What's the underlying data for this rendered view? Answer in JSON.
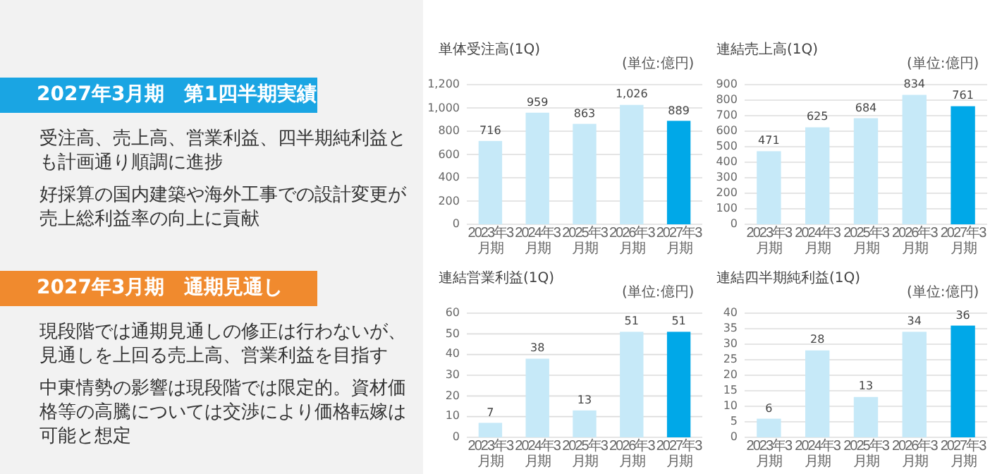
{
  "chart_data": [
    {
      "type": "other",
      "annotations": [
        "2027年3月期　第1四半期実績",
        "受注高、売上高、営業利益、四半期純利益とも計画通り順調に進捗",
        "好採算の国内建築や海外工事での設計変更が売上総利益率の向上に貢献",
        "2027年3月期　通期見通し",
        "現段階では通期見通しの修正は行わないが、見通しを上回る売上高、営業利益を目指す",
        "中東情勢の影響は現段階では限定的。資材価格等の高騰については交渉により価格転嫁は可能と想定"
      ]
    },
    {
      "type": "bar",
      "title": "単体受注高(1Q)",
      "annotations": [
        "(単位:億円)"
      ],
      "categories": [
        "2023年3月期",
        "2024年3月期",
        "2025年3月期",
        "2026年3月期",
        "2027年3月期"
      ],
      "values": [
        716,
        959,
        863,
        1026,
        889
      ],
      "value_labels": [
        "716",
        "959",
        "863",
        "1,026",
        "889"
      ],
      "colors": [
        "#c6e9f8",
        "#c6e9f8",
        "#c6e9f8",
        "#c6e9f8",
        "#00a8e8"
      ],
      "ylim": [
        0,
        1200
      ],
      "yticks": [
        0,
        200,
        400,
        600,
        800,
        {
          "value": 1000,
          "label": "1,000"
        },
        {
          "value": 1200,
          "label": "1,200"
        }
      ],
      "grid": "y"
    },
    {
      "type": "bar",
      "title": "連結売上高(1Q)",
      "annotations": [
        "(単位:億円)"
      ],
      "categories": [
        "2023年3月期",
        "2024年3月期",
        "2025年3月期",
        "2026年3月期",
        "2027年3月期"
      ],
      "values": [
        471,
        625,
        684,
        834,
        761
      ],
      "data_labels": true,
      "colors": [
        "#c6e9f8",
        "#c6e9f8",
        "#c6e9f8",
        "#c6e9f8",
        "#00a8e8"
      ],
      "ylim": [
        0,
        900
      ],
      "yticks": [
        0,
        100,
        200,
        300,
        400,
        500,
        600,
        700,
        800,
        900
      ],
      "grid": "y"
    },
    {
      "type": "bar",
      "title": "連結営業利益(1Q)",
      "annotations": [
        "(単位:億円)"
      ],
      "categories": [
        "2023年3月期",
        "2024年3月期",
        "2025年3月期",
        "2026年3月期",
        "2027年3月期"
      ],
      "values": [
        7,
        38,
        13,
        51,
        51
      ],
      "data_labels": true,
      "colors": [
        "#c6e9f8",
        "#c6e9f8",
        "#c6e9f8",
        "#c6e9f8",
        "#00a8e8"
      ],
      "ylim": [
        0,
        60
      ],
      "yticks": [
        0,
        10,
        20,
        30,
        40,
        50,
        60
      ],
      "grid": "y"
    },
    {
      "type": "bar",
      "title": "連結四半期純利益(1Q)",
      "annotations": [
        "(単位:億円)"
      ],
      "categories": [
        "2023年3月期",
        "2024年3月期",
        "2025年3月期",
        "2026年3月期",
        "2027年3月期"
      ],
      "values": [
        6,
        28,
        13,
        34,
        36
      ],
      "data_labels": true,
      "colors": [
        "#c6e9f8",
        "#c6e9f8",
        "#c6e9f8",
        "#c6e9f8",
        "#00a8e8"
      ],
      "ylim": [
        0,
        40
      ],
      "yticks": [
        0,
        5,
        10,
        15,
        20,
        25,
        30,
        35,
        40
      ],
      "grid": "y"
    }
  ]
}
